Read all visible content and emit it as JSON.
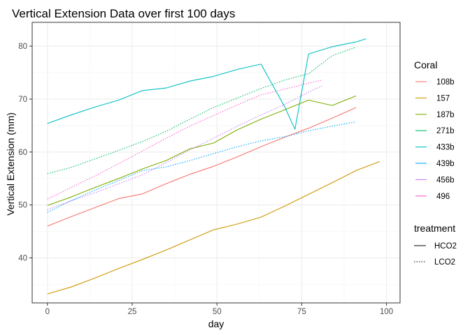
{
  "chart_data": {
    "type": "line",
    "title": "Vertical Extension Data over first 100 days",
    "xlabel": "day",
    "ylabel": "Vertical Extension (mm)",
    "xlim": [
      -4.5,
      104
    ],
    "ylim": [
      31.5,
      84.5
    ],
    "x_ticks": [
      0,
      25,
      50,
      75,
      100
    ],
    "y_ticks": [
      40,
      50,
      60,
      70,
      80
    ],
    "grid": true,
    "legend_placement": "right",
    "legends": [
      {
        "title": "Coral",
        "entries": [
          {
            "label": "108b",
            "color": "#F8766D"
          },
          {
            "label": "157",
            "color": "#CD9600"
          },
          {
            "label": "187b",
            "color": "#7CAE00"
          },
          {
            "label": "271b",
            "color": "#00BE67"
          },
          {
            "label": "433b",
            "color": "#00BFC4"
          },
          {
            "label": "439b",
            "color": "#00A9FF"
          },
          {
            "label": "456b",
            "color": "#C77CFF"
          },
          {
            "label": "496",
            "color": "#FF61CC"
          }
        ]
      },
      {
        "title": "treatment",
        "entries": [
          {
            "label": "HCO2",
            "linetype": "solid"
          },
          {
            "label": "LCO2",
            "linetype": "dotted"
          }
        ]
      }
    ],
    "series": [
      {
        "coral": "108b",
        "treatment": "HCO2",
        "color": "#F8766D",
        "linetype": "solid",
        "x": [
          0,
          7,
          14,
          21,
          28,
          35,
          42,
          49,
          56,
          63,
          70,
          77,
          84,
          91
        ],
        "y": [
          46.0,
          47.8,
          49.5,
          51.2,
          52.1,
          54.0,
          55.8,
          57.3,
          59.1,
          61.0,
          62.8,
          64.5,
          66.4,
          68.4
        ]
      },
      {
        "coral": "157",
        "treatment": "HCO2",
        "color": "#CD9600",
        "linetype": "solid",
        "x": [
          0,
          7,
          14,
          21,
          28,
          35,
          42,
          49,
          56,
          63,
          70,
          77,
          84,
          91,
          98
        ],
        "y": [
          33.2,
          34.5,
          36.2,
          38.0,
          39.7,
          41.5,
          43.4,
          45.3,
          46.4,
          47.7,
          49.8,
          52.0,
          54.2,
          56.5,
          58.2
        ]
      },
      {
        "coral": "187b",
        "treatment": "HCO2",
        "color": "#7CAE00",
        "linetype": "solid",
        "x": [
          0,
          7,
          14,
          21,
          28,
          35,
          42,
          49,
          56,
          63,
          70,
          77,
          84,
          91
        ],
        "y": [
          49.9,
          51.5,
          53.3,
          55.0,
          56.8,
          58.4,
          60.6,
          61.7,
          64.2,
          66.2,
          68.0,
          69.8,
          68.8,
          70.6
        ]
      },
      {
        "coral": "433b",
        "treatment": "HCO2",
        "color": "#00BFC4",
        "linetype": "solid",
        "x": [
          0,
          7,
          14,
          21,
          28,
          35,
          42,
          49,
          56,
          63,
          70,
          73,
          77,
          84,
          91,
          94
        ],
        "y": [
          65.4,
          67.0,
          68.5,
          69.8,
          71.6,
          72.1,
          73.4,
          74.3,
          75.6,
          76.6,
          68.5,
          64.3,
          78.5,
          79.9,
          80.8,
          81.4
        ]
      },
      {
        "coral": "271b",
        "treatment": "LCO2",
        "color": "#00BE67",
        "linetype": "dotted",
        "x": [
          0,
          7,
          14,
          21,
          28,
          35,
          42,
          49,
          56,
          63,
          70,
          77,
          84,
          91
        ],
        "y": [
          55.9,
          57.1,
          58.7,
          60.3,
          62.0,
          63.9,
          66.2,
          68.4,
          70.2,
          72.0,
          73.6,
          74.8,
          78.2,
          79.8
        ]
      },
      {
        "coral": "439b",
        "treatment": "LCO2",
        "color": "#00A9FF",
        "linetype": "dotted",
        "x": [
          0,
          7,
          14,
          21,
          28,
          35,
          42,
          49,
          56,
          63,
          70,
          77,
          84,
          91
        ],
        "y": [
          48.6,
          50.8,
          52.8,
          54.6,
          56.5,
          57.2,
          58.4,
          59.7,
          61.0,
          62.1,
          62.9,
          64.0,
          64.9,
          65.7
        ]
      },
      {
        "coral": "456b",
        "treatment": "LCO2",
        "color": "#C77CFF",
        "linetype": "dotted",
        "x": [
          0,
          7,
          14,
          21,
          28,
          35,
          42,
          49,
          56,
          63,
          70,
          77,
          81
        ],
        "y": [
          49.1,
          50.8,
          52.3,
          54.0,
          55.7,
          58.0,
          60.4,
          62.6,
          64.9,
          67.0,
          69.0,
          71.3,
          72.5
        ]
      },
      {
        "coral": "496",
        "treatment": "LCO2",
        "color": "#FF61CC",
        "linetype": "dotted",
        "x": [
          0,
          7,
          14,
          21,
          28,
          35,
          42,
          49,
          56,
          63,
          70,
          77,
          81
        ],
        "y": [
          51.1,
          53.3,
          55.5,
          57.8,
          60.2,
          62.6,
          64.9,
          66.9,
          68.9,
          70.8,
          71.9,
          73.0,
          73.6
        ]
      }
    ]
  }
}
